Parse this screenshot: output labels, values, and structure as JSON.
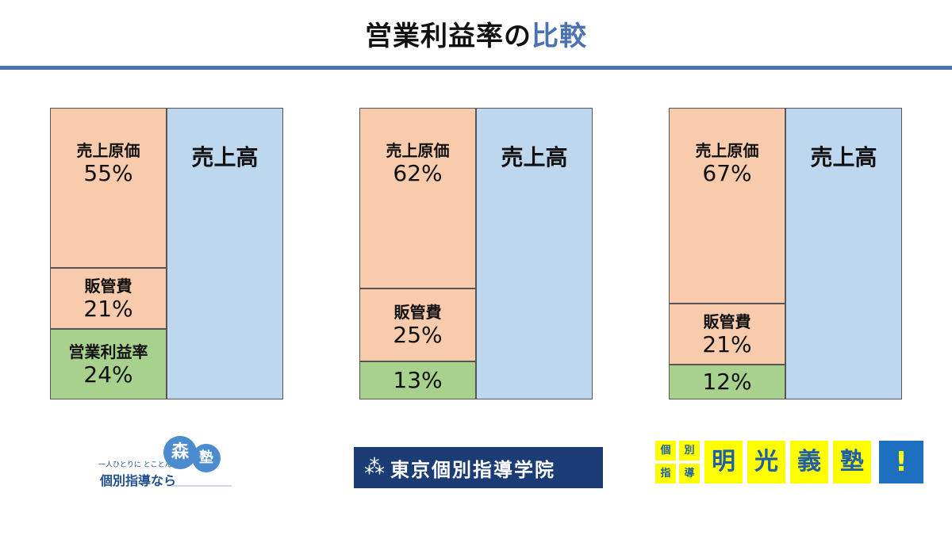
{
  "title": {
    "main": "営業利益率の",
    "accent": "比較"
  },
  "chart_data": [
    {
      "type": "bar",
      "stacked": true,
      "categories": [
        "売上原価",
        "販管費",
        "営業利益率"
      ],
      "segments": [
        {
          "label": "売上原価",
          "value_text": "55%",
          "value": 55
        },
        {
          "label": "販管費",
          "value_text": "21%",
          "value": 21
        },
        {
          "label": "営業利益率",
          "value_text": "24%",
          "value": 24
        }
      ],
      "sales_label": "売上高"
    },
    {
      "type": "bar",
      "stacked": true,
      "segments": [
        {
          "label": "売上原価",
          "value_text": "62%",
          "value": 62
        },
        {
          "label": "販管費",
          "value_text": "25%",
          "value": 25
        },
        {
          "label": "",
          "value_text": "13%",
          "value": 13
        }
      ],
      "sales_label": "売上高"
    },
    {
      "type": "bar",
      "stacked": true,
      "segments": [
        {
          "label": "売上原価",
          "value_text": "67%",
          "value": 67
        },
        {
          "label": "販管費",
          "value_text": "21%",
          "value": 21
        },
        {
          "label": "",
          "value_text": "12%",
          "value": 12
        }
      ],
      "sales_label": "売上高"
    }
  ],
  "colors": {
    "cost": "#f8cbad",
    "sga": "#f8cbad",
    "profit": "#a9d18e",
    "sales": "#bdd7ee",
    "accent": "#4a72b0"
  },
  "logos": {
    "morijuku": {
      "tagline": "一人ひとりに とことん",
      "name": "個別指導なら",
      "mark1": "森",
      "mark2": "塾"
    },
    "tokyo": {
      "icon": "tri-star-icon",
      "name": "東京個別指導学院"
    },
    "meiko": {
      "small": [
        "個",
        "別",
        "指",
        "導"
      ],
      "big": [
        "明",
        "光",
        "義",
        "塾"
      ],
      "bang": "!"
    }
  }
}
